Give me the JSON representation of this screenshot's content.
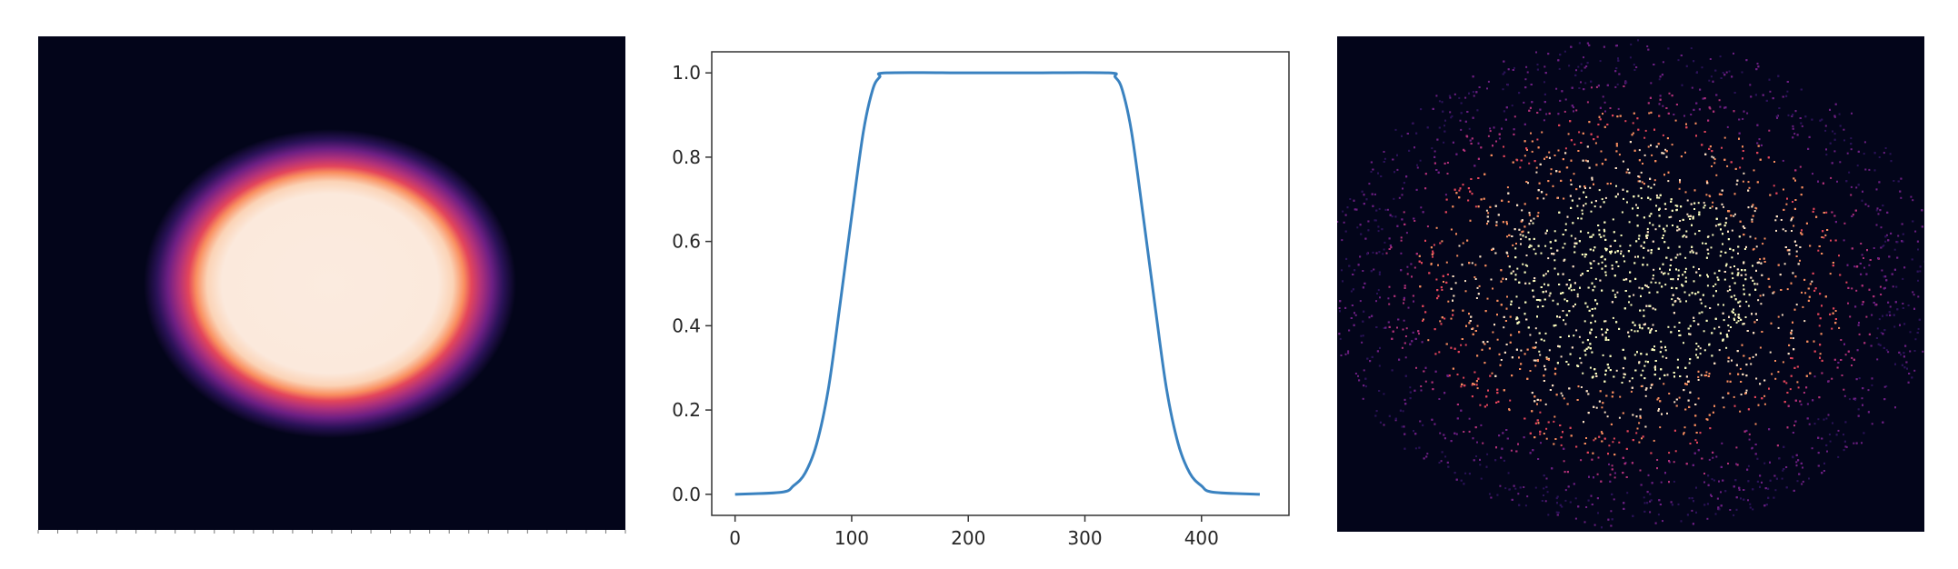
{
  "chart_data": [
    {
      "type": "heatmap",
      "description_colormap": "magma",
      "shape": "ellipse",
      "background_color": "#03051a",
      "fill_color": "#fbebdf"
    },
    {
      "type": "line",
      "title": "",
      "xlabel": "",
      "ylabel": "",
      "xlim": [
        -20,
        475
      ],
      "ylim": [
        -0.05,
        1.05
      ],
      "xticks": [
        0,
        100,
        200,
        300,
        400
      ],
      "yticks": [
        0.0,
        0.2,
        0.4,
        0.6,
        0.8,
        1.0
      ],
      "xtick_labels": [
        "0",
        "100",
        "200",
        "300",
        "400"
      ],
      "ytick_labels": [
        "0.0",
        "0.2",
        "0.4",
        "0.6",
        "0.8",
        "1.0"
      ],
      "grid": false,
      "series": [
        {
          "color": "#3a82c0",
          "x": [
            0,
            40,
            50,
            60,
            70,
            80,
            90,
            100,
            110,
            118,
            124,
            130,
            200,
            250,
            320,
            326,
            332,
            340,
            350,
            360,
            370,
            380,
            390,
            400,
            410,
            450
          ],
          "y": [
            0.0,
            0.005,
            0.02,
            0.05,
            0.12,
            0.25,
            0.45,
            0.66,
            0.86,
            0.96,
            0.99,
            1.0,
            1.0,
            1.0,
            1.0,
            0.99,
            0.96,
            0.86,
            0.66,
            0.45,
            0.25,
            0.12,
            0.05,
            0.02,
            0.005,
            0.0
          ]
        }
      ]
    },
    {
      "type": "heatmap",
      "description_colormap": "magma",
      "shape": "noisy-ellipse",
      "background_color": "#03051a",
      "point_colors": [
        "#fcfdbf",
        "#fde2c4",
        "#f98e5f",
        "#e3455b",
        "#b1317a",
        "#6d1f83",
        "#2b1258"
      ]
    }
  ]
}
